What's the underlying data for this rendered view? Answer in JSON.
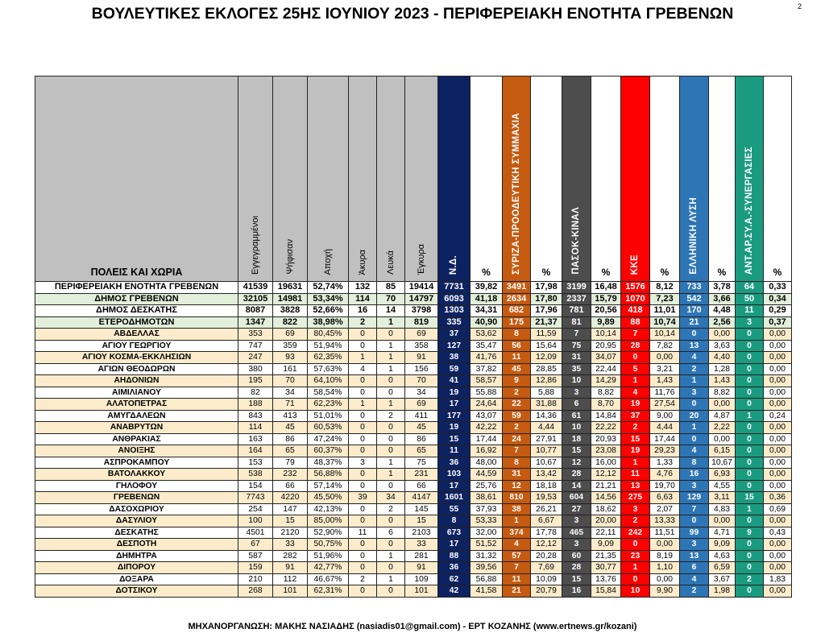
{
  "title": "ΒΟΥΛΕΥΤΙΚΕΣ ΕΚΛΟΓΕΣ 25ΗΣ ΙΟΥΝΙΟΥ 2023 - ΠΕΡΙΦΕΡΕΙΑΚΗ ΕΝΟΤΗΤΑ ΓΡΕΒΕΝΩΝ",
  "page_number": "2",
  "footer": "ΜΗΧΑΝΟΡΓΑΝΩΣΗ: ΜΑΚΗΣ ΝΑΣΙΑΔΗΣ (nasiadis01@gmail.com) - ΕΡΤ ΚΟΖΑΝΗΣ (www.ertnews.gr/kozani)",
  "headers": [
    "ΠΟΛΕΙΣ ΚΑΙ ΧΩΡΙΑ",
    "Εγγεγραμμένοι",
    "Ψήφισαν",
    "Αποχή",
    "Άκυρα",
    "Λευκά",
    "Έγκυρα",
    "Ν.Δ.",
    "%",
    "ΣΥΡΙΖΑ-ΠΡΟΟΔΕΥΤΙΚΗ ΣΥΜΜΑΧΙΑ",
    "%",
    "ΠΑΣΟΚ-ΚΙΝΑΛ",
    "%",
    "ΚΚΕ",
    "%",
    "ΕΛΛΗΝΙΚΗ ΛΥΣΗ",
    "%",
    "ΑΝΤ.ΑΡ.ΣΥ.Α.-ΣΥΝΕΡΓΑΣΙΕΣ",
    "%"
  ],
  "party_colors": {
    "nd": "#0d2260",
    "syriza": "#c55a11",
    "pasok": "#4d4d4d",
    "kke": "#ff0000",
    "elliniki_lysi": "#2e75b6",
    "antarsya": "#1a9b80"
  },
  "rows": [
    [
      "ΠΕΡΙΦΕΡΕΙΑΚΗ ΕΝΟΤΗΤΑ ΓΡΕΒΕΝΩΝ",
      "41539",
      "19631",
      "52,74%",
      "132",
      "85",
      "19414",
      "7731",
      "39,82",
      "3491",
      "17,98",
      "3199",
      "16,48",
      "1576",
      "8,12",
      "733",
      "3,78",
      "64",
      "0,33"
    ],
    [
      "ΔΗΜΟΣ ΓΡΕΒΕΝΩΝ",
      "32105",
      "14981",
      "53,34%",
      "114",
      "70",
      "14797",
      "6093",
      "41,18",
      "2634",
      "17,80",
      "2337",
      "15,79",
      "1070",
      "7,23",
      "542",
      "3,66",
      "50",
      "0,34"
    ],
    [
      "ΔΗΜΟΣ ΔΕΣΚΑΤΗΣ",
      "8087",
      "3828",
      "52,66%",
      "16",
      "14",
      "3798",
      "1303",
      "34,31",
      "682",
      "17,96",
      "781",
      "20,56",
      "418",
      "11,01",
      "170",
      "4,48",
      "11",
      "0,29"
    ],
    [
      "ΕΤΕΡΟΔΗΜΟΤΩΝ",
      "1347",
      "822",
      "38,98%",
      "2",
      "1",
      "819",
      "335",
      "40,90",
      "175",
      "21,37",
      "81",
      "9,89",
      "88",
      "10,74",
      "21",
      "2,56",
      "3",
      "0,37"
    ],
    [
      "ΑΒΔΕΛΛΑΣ",
      "353",
      "69",
      "80,45%",
      "0",
      "0",
      "69",
      "37",
      "53,62",
      "8",
      "11,59",
      "7",
      "10,14",
      "7",
      "10,14",
      "0",
      "0,00",
      "0",
      "0,00"
    ],
    [
      "ΑΓΙΟΥ ΓΕΩΡΓΙΟΥ",
      "747",
      "359",
      "51,94%",
      "0",
      "1",
      "358",
      "127",
      "35,47",
      "56",
      "15,64",
      "75",
      "20,95",
      "28",
      "7,82",
      "13",
      "3,63",
      "0",
      "0,00"
    ],
    [
      "ΑΓΙΟΥ ΚΟΣΜΑ-ΕΚΚΛΗΣΙΩΝ",
      "247",
      "93",
      "62,35%",
      "1",
      "1",
      "91",
      "38",
      "41,76",
      "11",
      "12,09",
      "31",
      "34,07",
      "0",
      "0,00",
      "4",
      "4,40",
      "0",
      "0,00"
    ],
    [
      "ΑΓΙΩΝ ΘΕΟΔΩΡΩΝ",
      "380",
      "161",
      "57,63%",
      "4",
      "1",
      "156",
      "59",
      "37,82",
      "45",
      "28,85",
      "35",
      "22,44",
      "5",
      "3,21",
      "2",
      "1,28",
      "0",
      "0,00"
    ],
    [
      "ΑΗΔΟΝΙΩΝ",
      "195",
      "70",
      "64,10%",
      "0",
      "0",
      "70",
      "41",
      "58,57",
      "9",
      "12,86",
      "10",
      "14,29",
      "1",
      "1,43",
      "1",
      "1,43",
      "0",
      "0,00"
    ],
    [
      "ΑΙΜΙΛΙΑΝΟΥ",
      "82",
      "34",
      "58,54%",
      "0",
      "0",
      "34",
      "19",
      "55,88",
      "2",
      "5,88",
      "3",
      "8,82",
      "4",
      "11,76",
      "3",
      "8,82",
      "0",
      "0,00"
    ],
    [
      "ΑΛΑΤΟΠΕΤΡΑΣ",
      "188",
      "71",
      "62,23%",
      "1",
      "1",
      "69",
      "17",
      "24,64",
      "22",
      "31,88",
      "6",
      "8,70",
      "19",
      "27,54",
      "0",
      "0,00",
      "0",
      "0,00"
    ],
    [
      "ΑΜΥΓΔΑΛΕΩΝ",
      "843",
      "413",
      "51,01%",
      "0",
      "2",
      "411",
      "177",
      "43,07",
      "59",
      "14,36",
      "61",
      "14,84",
      "37",
      "9,00",
      "20",
      "4,87",
      "1",
      "0,24"
    ],
    [
      "ΑΝΑΒΡΥΤΩΝ",
      "114",
      "45",
      "60,53%",
      "0",
      "0",
      "45",
      "19",
      "42,22",
      "2",
      "4,44",
      "10",
      "22,22",
      "2",
      "4,44",
      "1",
      "2,22",
      "0",
      "0,00"
    ],
    [
      "ΑΝΘΡΑΚΙΑΣ",
      "163",
      "86",
      "47,24%",
      "0",
      "0",
      "86",
      "15",
      "17,44",
      "24",
      "27,91",
      "18",
      "20,93",
      "15",
      "17,44",
      "0",
      "0,00",
      "0",
      "0,00"
    ],
    [
      "ΑΝΟΙΞΗΣ",
      "164",
      "65",
      "60,37%",
      "0",
      "0",
      "65",
      "11",
      "16,92",
      "7",
      "10,77",
      "15",
      "23,08",
      "19",
      "29,23",
      "4",
      "6,15",
      "0",
      "0,00"
    ],
    [
      "ΑΣΠΡΟΚΑΜΠΟΥ",
      "153",
      "79",
      "48,37%",
      "3",
      "1",
      "75",
      "36",
      "48,00",
      "8",
      "10,67",
      "12",
      "16,00",
      "1",
      "1,33",
      "8",
      "10,67",
      "0",
      "0,00"
    ],
    [
      "ΒΑΤΟΛΑΚΚΟΥ",
      "538",
      "232",
      "56,88%",
      "0",
      "1",
      "231",
      "103",
      "44,59",
      "31",
      "13,42",
      "28",
      "12,12",
      "11",
      "4,76",
      "16",
      "6,93",
      "0",
      "0,00"
    ],
    [
      "ΓΗΛΟΦΟΥ",
      "154",
      "66",
      "57,14%",
      "0",
      "0",
      "66",
      "17",
      "25,76",
      "12",
      "18,18",
      "14",
      "21,21",
      "13",
      "19,70",
      "3",
      "4,55",
      "0",
      "0,00"
    ],
    [
      "ΓΡΕΒΕΝΩΝ",
      "7743",
      "4220",
      "45,50%",
      "39",
      "34",
      "4147",
      "1601",
      "38,61",
      "810",
      "19,53",
      "604",
      "14,56",
      "275",
      "6,63",
      "129",
      "3,11",
      "15",
      "0,36"
    ],
    [
      "ΔΑΣΟΧΩΡΙΟΥ",
      "254",
      "147",
      "42,13%",
      "0",
      "2",
      "145",
      "55",
      "37,93",
      "38",
      "26,21",
      "27",
      "18,62",
      "3",
      "2,07",
      "7",
      "4,83",
      "1",
      "0,69"
    ],
    [
      "ΔΑΣΥΛΙΟΥ",
      "100",
      "15",
      "85,00%",
      "0",
      "0",
      "15",
      "8",
      "53,33",
      "1",
      "6,67",
      "3",
      "20,00",
      "2",
      "13,33",
      "0",
      "0,00",
      "0",
      "0,00"
    ],
    [
      "ΔΕΣΚΑΤΗΣ",
      "4501",
      "2120",
      "52,90%",
      "11",
      "6",
      "2103",
      "673",
      "32,00",
      "374",
      "17,78",
      "465",
      "22,11",
      "242",
      "11,51",
      "99",
      "4,71",
      "9",
      "0,43"
    ],
    [
      "ΔΕΣΠΟΤΗ",
      "67",
      "33",
      "50,75%",
      "0",
      "0",
      "33",
      "17",
      "51,52",
      "4",
      "12,12",
      "3",
      "9,09",
      "0",
      "0,00",
      "3",
      "9,09",
      "0",
      "0,00"
    ],
    [
      "ΔΗΜΗΤΡΑ",
      "587",
      "282",
      "51,96%",
      "0",
      "1",
      "281",
      "88",
      "31,32",
      "57",
      "20,28",
      "60",
      "21,35",
      "23",
      "8,19",
      "13",
      "4,63",
      "0",
      "0,00"
    ],
    [
      "ΔΙΠΟΡΟΥ",
      "159",
      "91",
      "42,77%",
      "0",
      "0",
      "91",
      "36",
      "39,56",
      "7",
      "7,69",
      "28",
      "30,77",
      "1",
      "1,10",
      "6",
      "6,59",
      "0",
      "0,00"
    ],
    [
      "ΔΟΞΑΡΑ",
      "210",
      "112",
      "46,67%",
      "2",
      "1",
      "109",
      "62",
      "56,88",
      "11",
      "10,09",
      "15",
      "13,76",
      "0",
      "0,00",
      "4",
      "3,67",
      "2",
      "1,83"
    ],
    [
      "ΔΟΤΣΙΚΟΥ",
      "268",
      "101",
      "62,31%",
      "0",
      "0",
      "101",
      "42",
      "41,58",
      "21",
      "20,79",
      "16",
      "15,84",
      "10",
      "9,90",
      "2",
      "1,98",
      "0",
      "0,00"
    ]
  ]
}
